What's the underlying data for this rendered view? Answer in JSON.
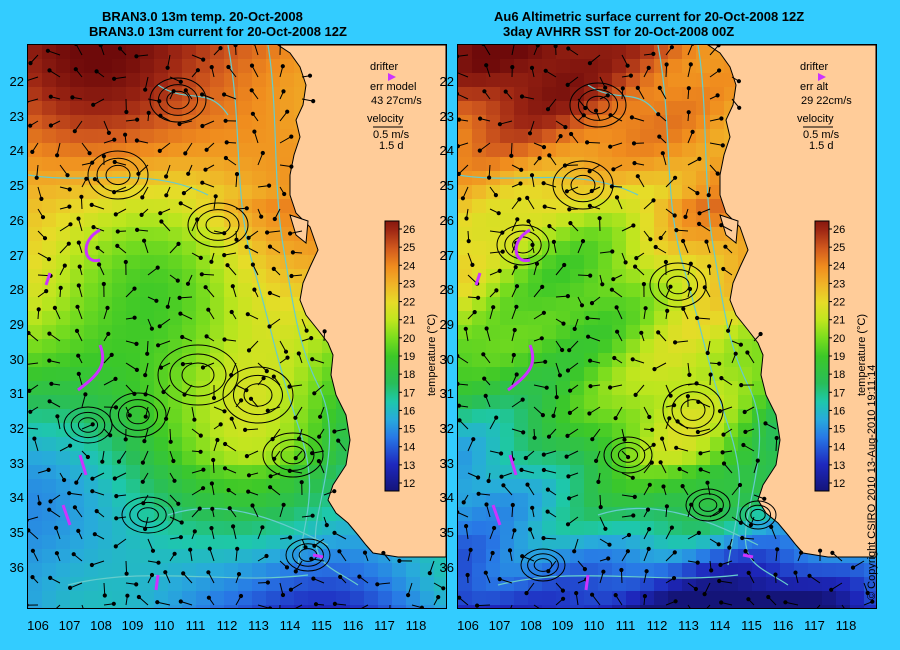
{
  "left": {
    "title_line1": "BRAN3.0 13m temp. 20-Oct-2008",
    "title_line2": "BRAN3.0 13m current for 20-Oct-2008 12Z",
    "legend": {
      "drifter": "drifter",
      "err_label": "err model",
      "err_value": "43 27cm/s",
      "velocity": "velocity",
      "scale": "0.5 m/s",
      "duration": "1.5 d"
    }
  },
  "right": {
    "title_line1": "Au6 Altimetric surface current for 20-Oct-2008 12Z",
    "title_line2": "3day AVHRR SST for 20-Oct-2008 00Z",
    "legend": {
      "drifter": "drifter",
      "err_label": "err alt",
      "err_value": "29 22cm/s",
      "velocity": "velocity",
      "scale": "0.5 m/s",
      "duration": "1.5 d"
    }
  },
  "colorbar": {
    "label": "temperature (°C)",
    "ticks": [
      "26",
      "25",
      "24",
      "23",
      "22",
      "21",
      "20",
      "19",
      "18",
      "17",
      "16",
      "15",
      "14",
      "13",
      "12"
    ]
  },
  "axes": {
    "lat_ticks": [
      "22",
      "23",
      "24",
      "25",
      "26",
      "27",
      "28",
      "29",
      "30",
      "31",
      "32",
      "33",
      "34",
      "35",
      "36"
    ],
    "lon_ticks": [
      "106",
      "107",
      "108",
      "109",
      "110",
      "111",
      "112",
      "113",
      "114",
      "115",
      "116",
      "117",
      "118"
    ]
  },
  "copyright": "© Copyright CSIRO 2010   13-Aug-2010 19:11:14",
  "colors": {
    "background": "#33CCFF",
    "land": "#FFCC99",
    "isobath": "#66CCCC",
    "drifter": "#CC33FF",
    "arrow": "#000000"
  }
}
